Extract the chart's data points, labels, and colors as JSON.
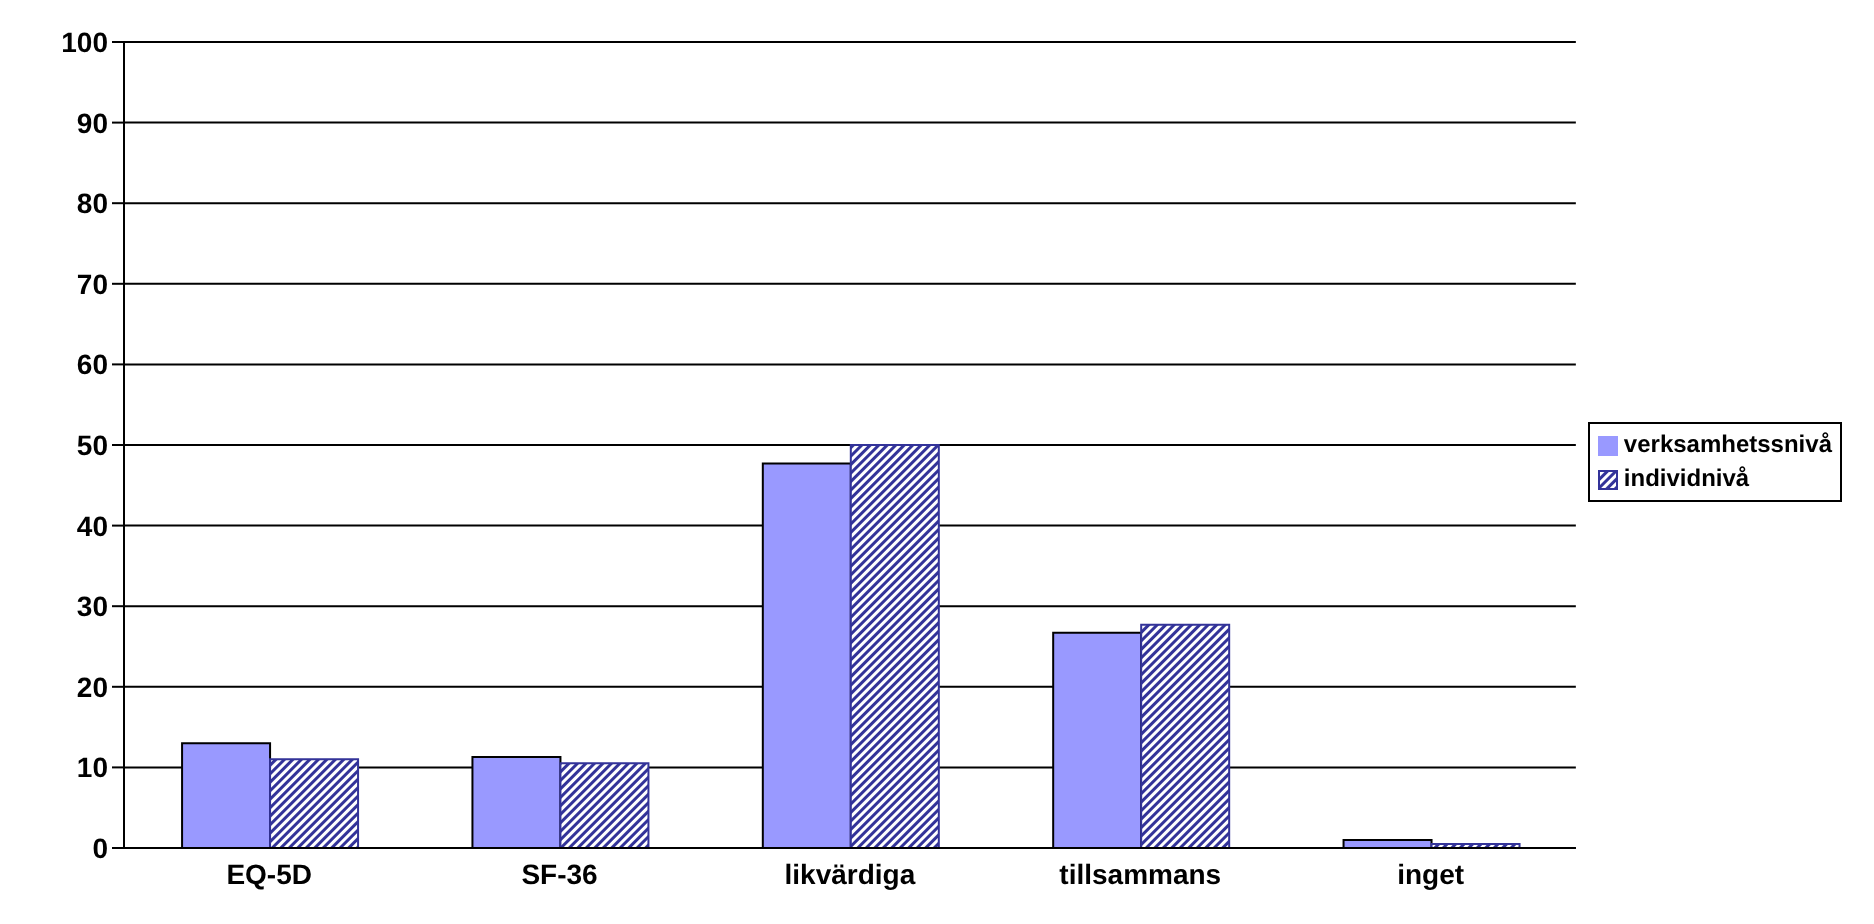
{
  "chart_data": {
    "type": "bar",
    "categories": [
      "EQ-5D",
      "SF-36",
      "likvärdiga",
      "tillsammans",
      "inget"
    ],
    "series": [
      {
        "name": "verksamhetssnivå",
        "color": "#9999ff",
        "values": [
          13,
          11.3,
          47.7,
          26.7,
          1
        ]
      },
      {
        "name": "individnivå",
        "color": "#333399",
        "values": [
          11,
          10.5,
          50,
          27.7,
          0.5
        ]
      }
    ],
    "ylim": [
      0,
      100
    ],
    "yticks": [
      0,
      10,
      20,
      30,
      40,
      50,
      60,
      70,
      80,
      90,
      100
    ],
    "grid": "y",
    "legend": "right"
  }
}
